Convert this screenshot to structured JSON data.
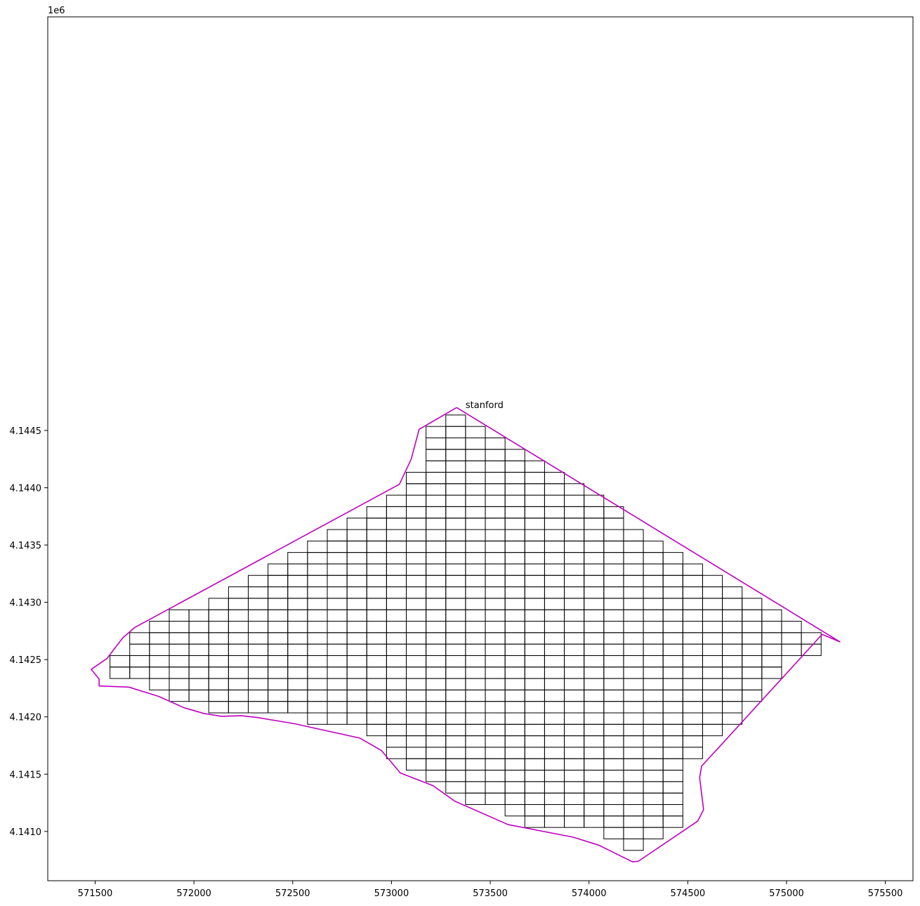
{
  "chart_data": {
    "type": "map",
    "title": "",
    "xlabel": "",
    "ylabel": "",
    "y_offset_label": "1e6",
    "xlim": [
      571260,
      575640
    ],
    "ylim": [
      4140570,
      4148110
    ],
    "x_ticks": [
      571500,
      572000,
      572500,
      573000,
      573500,
      574000,
      574500,
      575000,
      575500
    ],
    "y_ticks": [
      4141000,
      4141500,
      4142000,
      4142500,
      4143000,
      4143500,
      4144000,
      4144500
    ],
    "x_tick_labels": [
      "571500",
      "572000",
      "572500",
      "573000",
      "573500",
      "574000",
      "574500",
      "575000",
      "575500"
    ],
    "y_tick_labels": [
      "4.1410",
      "4.1415",
      "4.1420",
      "4.1425",
      "4.1430",
      "4.1435",
      "4.1440",
      "4.1445"
    ],
    "grid": false,
    "annotations": [
      {
        "text": "stanford",
        "x": 573375,
        "y": 4144695
      }
    ],
    "boundary": {
      "color": "#bf00bf",
      "points": [
        [
          573330,
          4144700
        ],
        [
          575270,
          4142655
        ],
        [
          575180,
          4142720
        ],
        [
          574650,
          4141720
        ],
        [
          574570,
          4141570
        ],
        [
          574560,
          4141470
        ],
        [
          574580,
          4141190
        ],
        [
          574550,
          4141090
        ],
        [
          574250,
          4140740
        ],
        [
          574220,
          4140735
        ],
        [
          574050,
          4140880
        ],
        [
          573920,
          4140950
        ],
        [
          573590,
          4141060
        ],
        [
          573320,
          4141265
        ],
        [
          573210,
          4141400
        ],
        [
          573045,
          4141510
        ],
        [
          572950,
          4141705
        ],
        [
          572840,
          4141815
        ],
        [
          572510,
          4141940
        ],
        [
          572320,
          4141995
        ],
        [
          572240,
          4142010
        ],
        [
          572140,
          4142005
        ],
        [
          572050,
          4142030
        ],
        [
          571950,
          4142080
        ],
        [
          571820,
          4142180
        ],
        [
          571670,
          4142260
        ],
        [
          571520,
          4142270
        ],
        [
          571520,
          4142330
        ],
        [
          571480,
          4142415
        ],
        [
          571560,
          4142510
        ],
        [
          571640,
          4142690
        ],
        [
          571700,
          4142780
        ],
        [
          573040,
          4144030
        ],
        [
          573100,
          4144250
        ],
        [
          573140,
          4144510
        ],
        [
          573330,
          4144700
        ]
      ]
    },
    "grid_cells": {
      "cell_size": 100,
      "x_origin": 571575,
      "y_origin": 4140835,
      "color": "#000000",
      "rows": [
        {
          "y": 4140835,
          "col_start": 26,
          "col_end": 26
        },
        {
          "y": 4140935,
          "col_start": 25,
          "col_end": 27
        },
        {
          "y": 4141035,
          "col_start": 21,
          "col_end": 28
        },
        {
          "y": 4141135,
          "col_start": 20,
          "col_end": 28
        },
        {
          "y": 4141235,
          "col_start": 18,
          "col_end": 28
        },
        {
          "y": 4141335,
          "col_start": 17,
          "col_end": 28
        },
        {
          "y": 4141435,
          "col_start": 16,
          "col_end": 28
        },
        {
          "y": 4141535,
          "col_start": 15,
          "col_end": 28
        },
        {
          "y": 4141635,
          "col_start": 14,
          "col_end": 29
        },
        {
          "y": 4141735,
          "col_start": 14,
          "col_end": 29
        },
        {
          "y": 4141835,
          "col_start": 13,
          "col_end": 30
        },
        {
          "y": 4141935,
          "col_start": 10,
          "col_end": 31
        },
        {
          "y": 4142035,
          "col_start": 5,
          "col_end": 31
        },
        {
          "y": 4142135,
          "col_start": 3,
          "col_end": 32
        },
        {
          "y": 4142235,
          "col_start": 2,
          "col_end": 32
        },
        {
          "y": 4142335,
          "col_start": 0,
          "col_end": 33
        },
        {
          "y": 4142435,
          "col_start": 0,
          "col_end": 33
        },
        {
          "y": 4142535,
          "col_start": 1,
          "col_end": 35
        },
        {
          "y": 4142635,
          "col_start": 1,
          "col_end": 35
        },
        {
          "y": 4142735,
          "col_start": 2,
          "col_end": 34
        },
        {
          "y": 4142835,
          "col_start": 3,
          "col_end": 33
        },
        {
          "y": 4142935,
          "col_start": 5,
          "col_end": 32
        },
        {
          "y": 4143035,
          "col_start": 6,
          "col_end": 31
        },
        {
          "y": 4143135,
          "col_start": 7,
          "col_end": 30
        },
        {
          "y": 4143235,
          "col_start": 8,
          "col_end": 29
        },
        {
          "y": 4143335,
          "col_start": 9,
          "col_end": 28
        },
        {
          "y": 4143435,
          "col_start": 10,
          "col_end": 27
        },
        {
          "y": 4143535,
          "col_start": 11,
          "col_end": 26
        },
        {
          "y": 4143635,
          "col_start": 12,
          "col_end": 25
        },
        {
          "y": 4143735,
          "col_start": 13,
          "col_end": 25
        },
        {
          "y": 4143835,
          "col_start": 14,
          "col_end": 24
        },
        {
          "y": 4143935,
          "col_start": 15,
          "col_end": 23
        },
        {
          "y": 4144035,
          "col_start": 15,
          "col_end": 22
        },
        {
          "y": 4144135,
          "col_start": 16,
          "col_end": 21
        },
        {
          "y": 4144235,
          "col_start": 16,
          "col_end": 20
        },
        {
          "y": 4144335,
          "col_start": 16,
          "col_end": 19
        },
        {
          "y": 4144435,
          "col_start": 16,
          "col_end": 18
        },
        {
          "y": 4144535,
          "col_start": 17,
          "col_end": 17
        }
      ]
    }
  }
}
